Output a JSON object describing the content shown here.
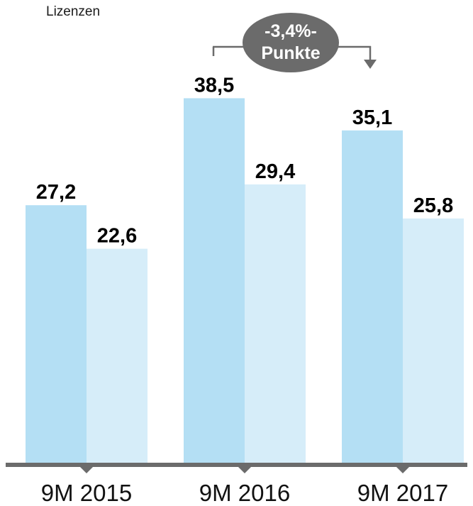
{
  "header": {
    "label": "Lizenzen"
  },
  "annotation": {
    "line1": "-3,4%-",
    "line2": "Punkte"
  },
  "chart_data": {
    "type": "bar",
    "categories": [
      "9M 2015",
      "9M 2016",
      "9M 2017"
    ],
    "series": [
      {
        "values": [
          27.2,
          38.5,
          35.1
        ],
        "color": "#b4dff4"
      },
      {
        "values": [
          22.6,
          29.4,
          25.8
        ],
        "color": "#d6edf9"
      }
    ],
    "data_labels": [
      [
        "27,2",
        "38,5",
        "35,1"
      ],
      [
        "22,6",
        "29,4",
        "25,8"
      ]
    ],
    "ylim": [
      0,
      42
    ],
    "colors": {
      "axis": "#6b6b6b",
      "bubble": "#6b6b6b",
      "arrow": "#6b6b6b"
    }
  }
}
